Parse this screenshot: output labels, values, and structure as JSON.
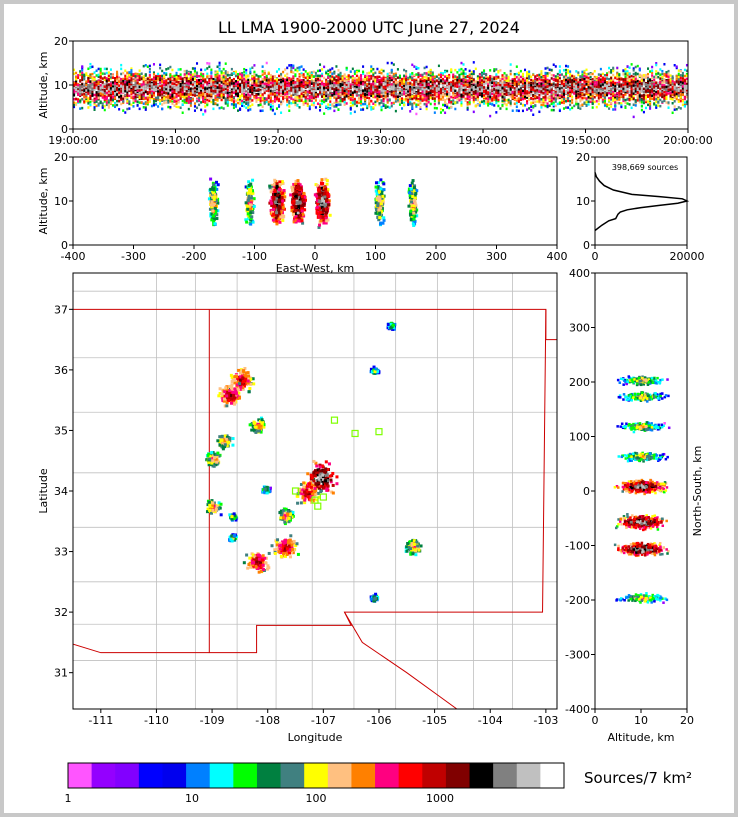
{
  "title": "LL LMA 1900-2000 UTC June 27, 2024",
  "colors": {
    "state_border": "#cc0000",
    "county_border": "#c0c0c0",
    "axis": "#000000"
  },
  "chart_data": [
    {
      "id": "time_height",
      "type": "heatmap",
      "ylabel": "Altitude, km",
      "ylim": [
        0,
        20
      ],
      "yticks": [
        "0",
        "10",
        "20"
      ],
      "xticks": [
        "19:00:00",
        "19:10:00",
        "19:20:00",
        "19:30:00",
        "19:40:00",
        "19:50:00",
        "20:00:00"
      ],
      "xlim_minutes": [
        0,
        60
      ]
    },
    {
      "id": "ew_height",
      "type": "heatmap",
      "xlabel": "East-West, km",
      "ylabel": "Altitude, km",
      "xlim": [
        -400,
        400
      ],
      "ylim": [
        0,
        20
      ],
      "xticks": [
        "-400",
        "-300",
        "-200",
        "-100",
        "0",
        "100",
        "200",
        "300",
        "400"
      ],
      "yticks": [
        "0",
        "10",
        "20"
      ],
      "clusters_x_km": [
        -170,
        -110,
        -65,
        -30,
        10,
        105,
        160
      ]
    },
    {
      "id": "altitude_histogram",
      "type": "line",
      "annotation": "398,669 sources",
      "xticks": [
        "0",
        "20000"
      ],
      "yticks": [
        "0",
        "10",
        "20"
      ],
      "xlim": [
        0,
        20000
      ],
      "ylim": [
        0,
        20
      ],
      "points": [
        [
          0,
          3.3
        ],
        [
          1500,
          4.5
        ],
        [
          3000,
          5.5
        ],
        [
          4500,
          6
        ],
        [
          5000,
          7
        ],
        [
          5500,
          7.5
        ],
        [
          7000,
          8
        ],
        [
          10000,
          8.5
        ],
        [
          14000,
          9
        ],
        [
          18000,
          9.5
        ],
        [
          20000,
          10
        ],
        [
          19000,
          10.5
        ],
        [
          14000,
          11
        ],
        [
          8000,
          11.5
        ],
        [
          4000,
          12.5
        ],
        [
          2000,
          13.5
        ],
        [
          1000,
          14.5
        ],
        [
          300,
          15.5
        ],
        [
          0,
          16.5
        ]
      ]
    },
    {
      "id": "plan_view",
      "type": "scatter",
      "xlabel": "Longitude",
      "ylabel": "Latitude",
      "xlim": [
        -111.5,
        -102.8
      ],
      "ylim": [
        30.4,
        37.6
      ],
      "xticks": [
        "-111",
        "-110",
        "-109",
        "-108",
        "-107",
        "-106",
        "-105",
        "-104",
        "-103"
      ],
      "yticks": [
        "31",
        "32",
        "33",
        "34",
        "35",
        "36",
        "37"
      ],
      "storm_cells": [
        {
          "lon": -108.5,
          "lat": 35.85,
          "size": 3
        },
        {
          "lon": -108.7,
          "lat": 35.6,
          "size": 3
        },
        {
          "lon": -108.2,
          "lat": 35.1,
          "size": 2
        },
        {
          "lon": -108.8,
          "lat": 34.85,
          "size": 2
        },
        {
          "lon": -109.0,
          "lat": 34.55,
          "size": 2
        },
        {
          "lon": -109.0,
          "lat": 33.75,
          "size": 2
        },
        {
          "lon": -108.65,
          "lat": 33.6,
          "size": 1
        },
        {
          "lon": -108.65,
          "lat": 33.25,
          "size": 1
        },
        {
          "lon": -108.2,
          "lat": 32.85,
          "size": 3
        },
        {
          "lon": -107.7,
          "lat": 33.6,
          "size": 2
        },
        {
          "lon": -107.7,
          "lat": 33.1,
          "size": 3
        },
        {
          "lon": -107.3,
          "lat": 34.0,
          "size": 3
        },
        {
          "lon": -107.05,
          "lat": 34.25,
          "size": 4
        },
        {
          "lon": -105.4,
          "lat": 33.1,
          "size": 2
        },
        {
          "lon": -106.1,
          "lat": 32.25,
          "size": 1
        },
        {
          "lon": -106.1,
          "lat": 36.0,
          "size": 1
        },
        {
          "lon": -105.8,
          "lat": 36.75,
          "size": 1
        },
        {
          "lon": -108.05,
          "lat": 34.05,
          "size": 1
        }
      ],
      "stations": [
        [
          -106.8,
          35.17
        ],
        [
          -106.43,
          34.95
        ],
        [
          -106.0,
          34.98
        ],
        [
          -107.15,
          33.85
        ],
        [
          -107.0,
          33.9
        ],
        [
          -107.5,
          34.0
        ],
        [
          -107.1,
          33.75
        ]
      ]
    },
    {
      "id": "height_ns",
      "type": "heatmap",
      "xlabel": "Altitude, km",
      "ylabel": "North-South, km",
      "xlim": [
        0,
        20
      ],
      "ylim": [
        -400,
        400
      ],
      "xticks": [
        "0",
        "10",
        "20"
      ],
      "yticks": [
        "-400",
        "-300",
        "-200",
        "-100",
        "0",
        "100",
        "200",
        "300",
        "400"
      ],
      "clusters_ns_km": [
        205,
        175,
        120,
        65,
        10,
        -55,
        -105,
        -195
      ]
    },
    {
      "id": "colorbar",
      "type": "bar",
      "label": "Sources/7 km²",
      "tick_labels": [
        "1",
        "10",
        "100",
        "1000"
      ],
      "colors": [
        "#ff55ff",
        "#9400ff",
        "#8200ff",
        "#0000ff",
        "#0000ee",
        "#0080ff",
        "#00ffff",
        "#00ff00",
        "#008040",
        "#408080",
        "#ffff00",
        "#ffc080",
        "#ff8000",
        "#ff0080",
        "#ff0000",
        "#c00000",
        "#800000",
        "#000000",
        "#808080",
        "#c0c0c0",
        "#ffffff"
      ]
    }
  ]
}
